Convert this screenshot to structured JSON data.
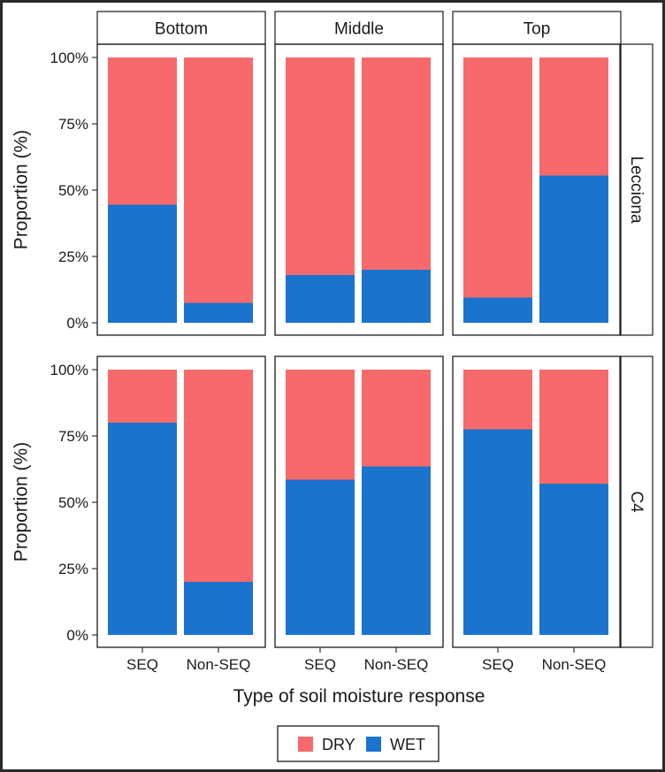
{
  "chart_data": {
    "type": "bar",
    "stacked": true,
    "x_title": "Type of soil moisture response",
    "y_title": "Proportion (%)",
    "y_ticks": [
      "0%",
      "25%",
      "50%",
      "75%",
      "100%"
    ],
    "ylim": [
      0,
      100
    ],
    "categories": [
      "SEQ",
      "Non-SEQ"
    ],
    "column_facets": [
      "Bottom",
      "Middle",
      "Top"
    ],
    "row_facets": [
      "Lecciona",
      "C4"
    ],
    "series_order": [
      "WET",
      "DRY"
    ],
    "colors": {
      "DRY": "#f8696b",
      "WET": "#1a73cd"
    },
    "wet_values": {
      "Lecciona": {
        "Bottom": [
          44.5,
          7.5
        ],
        "Middle": [
          18,
          20
        ],
        "Top": [
          9.5,
          55.5
        ]
      },
      "C4": {
        "Bottom": [
          80,
          20
        ],
        "Middle": [
          58.5,
          63.5
        ],
        "Top": [
          77.5,
          57
        ]
      }
    },
    "legend": {
      "position": "bottom",
      "entries": [
        "DRY",
        "WET"
      ]
    }
  }
}
